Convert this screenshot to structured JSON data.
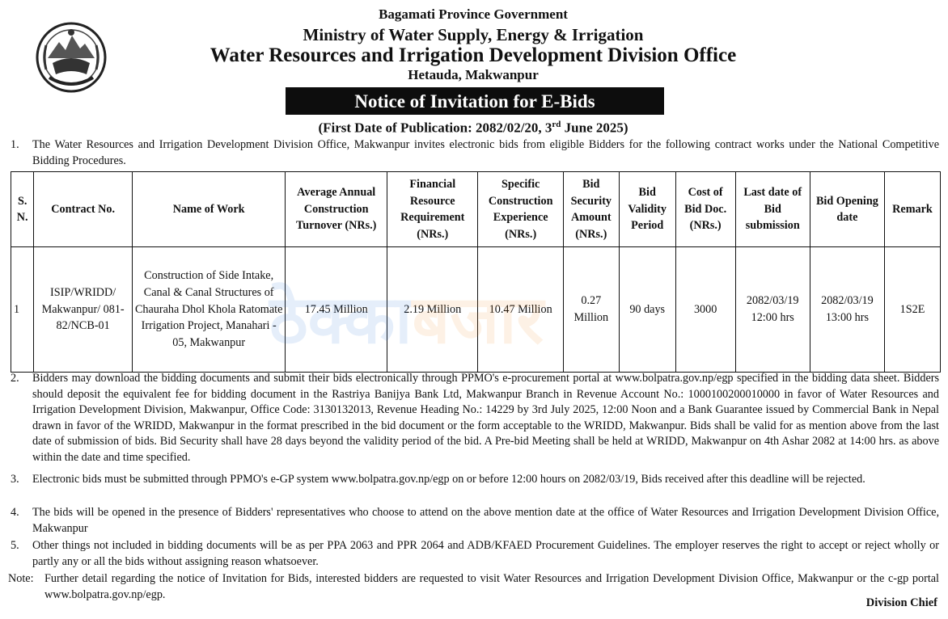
{
  "header": {
    "line1": "Bagamati Province Government",
    "line2": "Ministry of Water Supply, Energy & Irrigation",
    "line3": "Water Resources and Irrigation Development Division Office",
    "line4": "Hetauda, Makwanpur",
    "emblem_icon": "nepal-government-emblem"
  },
  "banner": {
    "title": "Notice of Invitation for E-Bids"
  },
  "publication": {
    "prefix": "(First Date of Publication: 2082/02/20, 3",
    "sup": "rd",
    "suffix": " June 2025)"
  },
  "para1": {
    "num": "1.",
    "text": "The Water Resources and Irrigation Development Division Office, Makwanpur invites electronic bids from eligible Bidders for the following contract works under the National Competitive Bidding Procedures."
  },
  "table": {
    "headers": [
      "S. N.",
      "Contract No.",
      "Name of Work",
      "Average Annual Construction Turnover (NRs.)",
      "Financial Resource Requirement (NRs.)",
      "Specific Construction Experience (NRs.)",
      "Bid Security Amount (NRs.)",
      "Bid Validity Period",
      "Cost of Bid Doc. (NRs.)",
      "Last date of Bid submission",
      "Bid Opening date",
      "Remark"
    ],
    "row": [
      "1",
      "ISIP/WRIDD/ Makwanpur/ 081-82/NCB-01",
      "Construction of Side Intake, Canal & Canal Structures of Chauraha Dhol Khola Ratomate Irrigation Project, Manahari - 05, Makwanpur",
      "17.45 Million",
      "2.19 Million",
      "10.47 Million",
      "0.27 Million",
      "90 days",
      "3000",
      "2082/03/19 12:00 hrs",
      "2082/03/19 13:00 hrs",
      "1S2E"
    ]
  },
  "watermark": {
    "part1": "ठेक्का",
    "part2": "बजार",
    "color1": "#1e6fd9",
    "color2": "#f08a1c"
  },
  "para2": {
    "num": "2.",
    "text": "Bidders may download the bidding documents and submit their bids electronically through PPMO's e-procurement portal at www.bolpatra.gov.np/egp specified in the bidding data sheet. Bidders should deposit the equivalent fee for bidding document in the Rastriya Banijya Bank Ltd, Makwanpur Branch in Revenue Account No.: 1000100200010000 in favor of Water Resources and Irrigation Development Division, Makwanpur, Office Code: 3130132013, Revenue Heading No.: 14229 by 3rd July 2025, 12:00 Noon and a Bank Guarantee issued by Commercial Bank in Nepal drawn in favor of the WRIDD, Makwanpur in the format prescribed in the bid document or the form acceptable to the WRIDD, Makwanpur. Bids shall be valid for as mention above from the last date of submission of bids. Bid Security shall have 28 days beyond the validity period of the bid. A Pre-bid Meeting shall be held at WRIDD, Makwanpur on 4th Ashar 2082 at 14:00 hrs. as above within the date and time specified."
  },
  "para3": {
    "num": "3.",
    "text": "Electronic bids must be submitted through PPMO's e-GP system www.bolpatra.gov.np/egp on or before 12:00 hours on 2082/03/19, Bids received after this deadline will be rejected."
  },
  "para4": {
    "num": "4.",
    "text": "The bids will be opened in the presence of Bidders' representatives who choose to attend on the above mention date at the office of Water Resources and Irrigation Development Division Office, Makwanpur"
  },
  "para5": {
    "num": "5.",
    "text": "Other things not included in bidding documents will be as per PPA 2063 and PPR 2064 and ADB/KFAED Procurement Guidelines. The employer reserves the right to accept or reject wholly or partly any or all the bids without assigning reason whatsoever."
  },
  "note": {
    "label": "Note:",
    "text": "Further detail regarding the notice of Invitation for Bids, interested bidders are requested to visit Water Resources and Irrigation Development Division Office, Makwanpur or the c-gp portal www.bolpatra.gov.np/egp."
  },
  "signature": "Division Chief"
}
